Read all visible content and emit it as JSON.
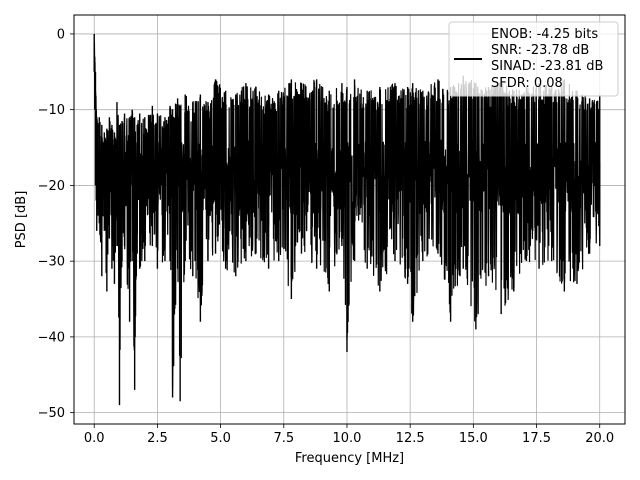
{
  "chart_data": {
    "type": "line",
    "title": "",
    "xlabel": "Frequency [MHz]",
    "ylabel": "PSD [dB]",
    "xlim": [
      -0.8,
      21.0
    ],
    "ylim": [
      -51.5,
      2.5
    ],
    "xticks": [
      0.0,
      2.5,
      5.0,
      7.5,
      10.0,
      12.5,
      15.0,
      17.5,
      20.0
    ],
    "xtick_labels": [
      "0.0",
      "2.5",
      "5.0",
      "7.5",
      "10.0",
      "12.5",
      "15.0",
      "17.5",
      "20.0"
    ],
    "yticks": [
      0,
      -10,
      -20,
      -30,
      -40,
      -50
    ],
    "ytick_labels": [
      "0",
      "−10",
      "−20",
      "−30",
      "−40",
      "−50"
    ],
    "grid": true,
    "line_color": "#000000",
    "legend": {
      "placement": "top-right",
      "entries": [
        "ENOB: -4.25 bits",
        "SNR: -23.78 dB",
        "SINAD: -23.81 dB",
        "SFDR: 0.08"
      ]
    },
    "series": [
      {
        "x": [
          0.0,
          0.02,
          0.05,
          0.08,
          0.1,
          0.15,
          0.2,
          0.3,
          0.4,
          0.5,
          0.6,
          0.7,
          0.8,
          0.9,
          1.0,
          1.1,
          1.2,
          1.4,
          1.5,
          1.6,
          1.7,
          1.8,
          2.0,
          2.3,
          2.5,
          2.8,
          3.0,
          3.1,
          3.3,
          3.4,
          3.6,
          3.9,
          4.2,
          4.5,
          4.8,
          5.2,
          5.6,
          6.0,
          6.4,
          6.9,
          7.3,
          7.8,
          8.2,
          8.8,
          9.3,
          9.8,
          10.0,
          10.3,
          10.8,
          11.3,
          11.9,
          12.4,
          12.6,
          13.0,
          13.6,
          14.1,
          14.6,
          15.1,
          15.6,
          16.1,
          16.6,
          17.1,
          17.6,
          18.1,
          18.6,
          19.1,
          19.6,
          20.0
        ],
        "upper": [
          0.0,
          -3.0,
          -5.0,
          -10.0,
          -11.0,
          -12.0,
          -11.0,
          -12.0,
          -13.0,
          -12.5,
          -11.0,
          -12.0,
          -13.0,
          -9.0,
          -12.0,
          -11.5,
          -10.5,
          -11.0,
          -10.0,
          -11.0,
          -12.0,
          -10.5,
          -11.0,
          -9.5,
          -10.5,
          -11.0,
          -9.5,
          -10.0,
          -8.5,
          -9.5,
          -8.0,
          -9.0,
          -8.0,
          -9.0,
          -6.0,
          -7.5,
          -8.0,
          -6.5,
          -7.0,
          -8.0,
          -7.5,
          -6.0,
          -6.5,
          -6.0,
          -7.5,
          -6.5,
          -7.0,
          -6.0,
          -7.5,
          -7.0,
          -6.5,
          -7.0,
          -6.5,
          -7.5,
          -6.0,
          -7.0,
          -5.5,
          -6.5,
          -7.0,
          -6.0,
          -7.5,
          -7.0,
          -6.5,
          -7.0,
          -6.0,
          -7.5,
          -8.5,
          -8.0
        ],
        "lower": [
          -5.0,
          -10.0,
          -20.0,
          -22.0,
          -26.0,
          -24.0,
          -25.0,
          -32.0,
          -26.0,
          -34.0,
          -27.0,
          -31.0,
          -33.0,
          -28.0,
          -49.0,
          -30.0,
          -28.0,
          -38.0,
          -30.0,
          -47.0,
          -29.0,
          -31.0,
          -30.0,
          -28.0,
          -31.0,
          -30.0,
          -30.0,
          -48.0,
          -31.0,
          -48.5,
          -30.0,
          -32.0,
          -38.0,
          -30.0,
          -29.0,
          -31.0,
          -32.0,
          -30.0,
          -29.0,
          -31.0,
          -30.0,
          -35.0,
          -29.0,
          -31.0,
          -34.0,
          -28.0,
          -42.0,
          -30.0,
          -31.0,
          -34.0,
          -30.0,
          -33.0,
          -38.0,
          -30.0,
          -29.0,
          -38.0,
          -31.0,
          -39.0,
          -32.0,
          -37.0,
          -34.0,
          -30.0,
          -31.0,
          -30.0,
          -34.0,
          -33.0,
          -29.0,
          -28.0
        ]
      }
    ]
  }
}
